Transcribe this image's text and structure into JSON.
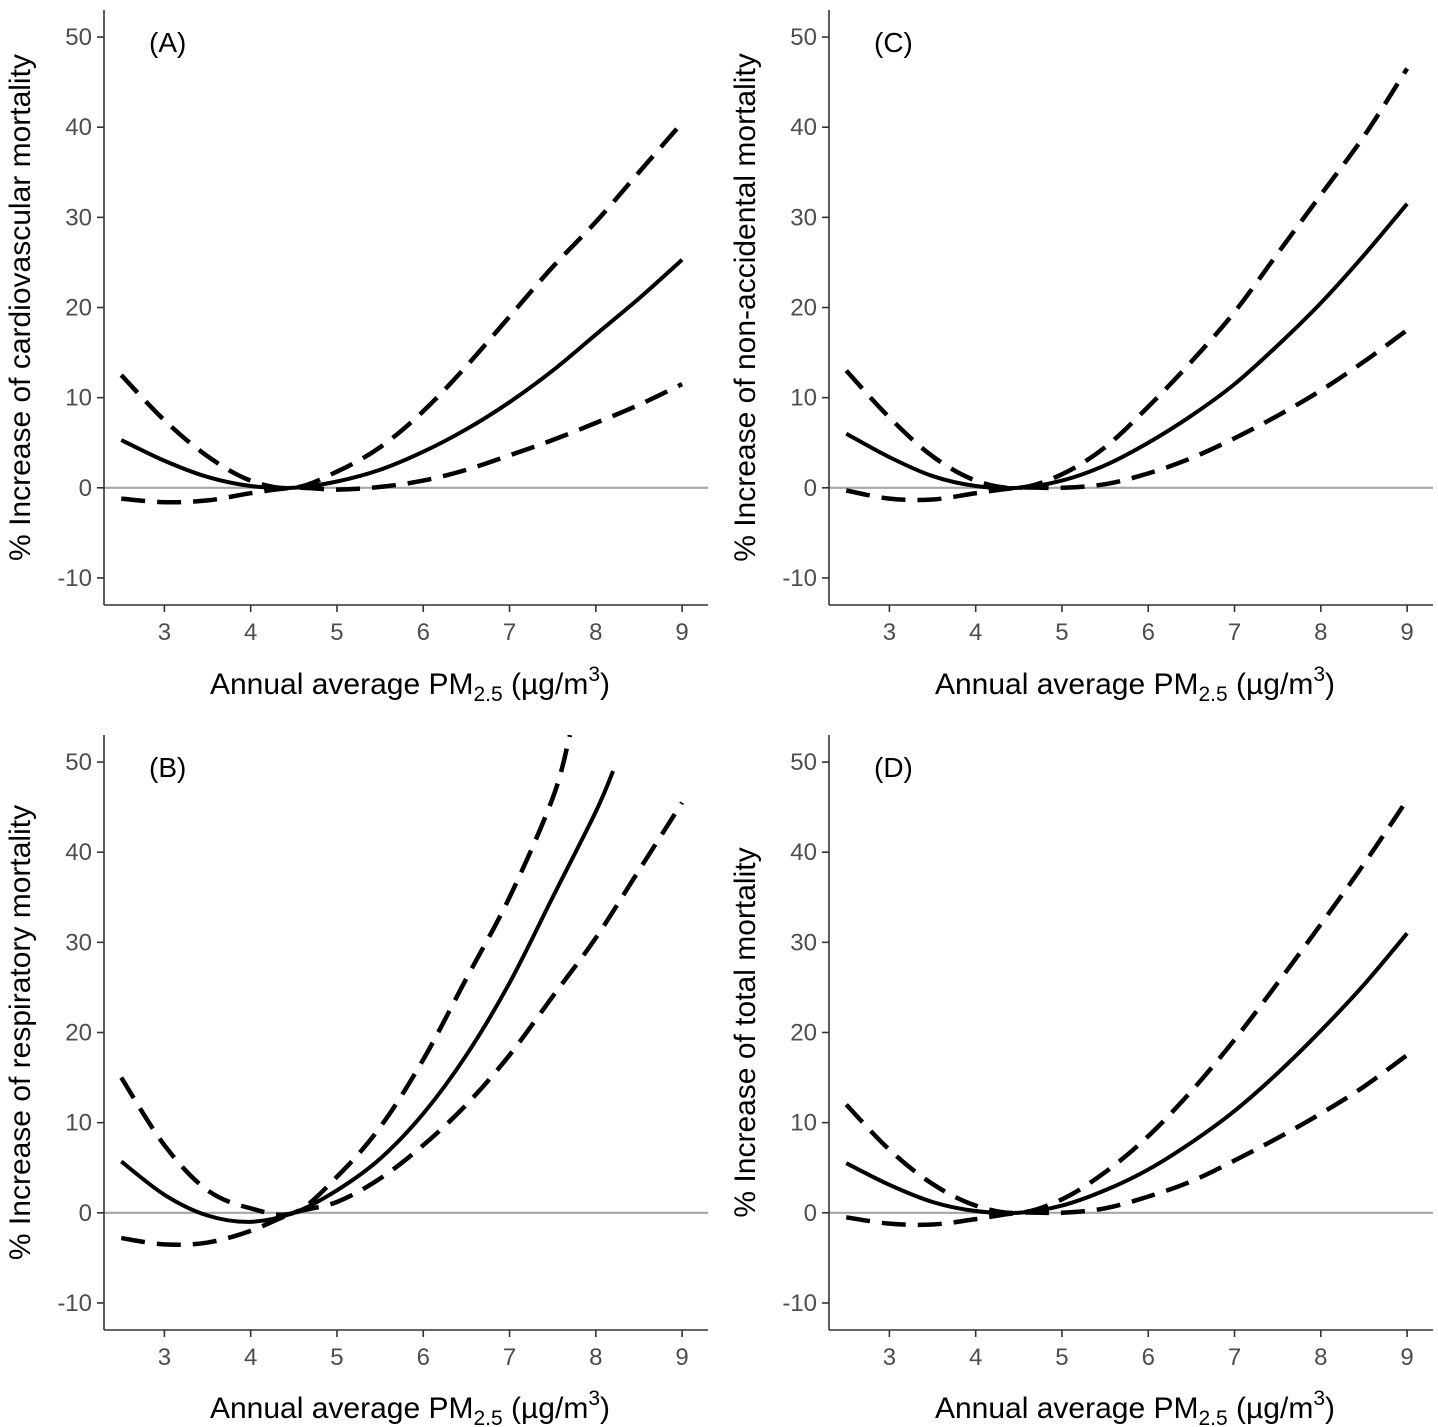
{
  "colors": {
    "line": "#000000",
    "reference": "#a6a6a6",
    "axis": "#333333",
    "tick_text": "#4d4d4d"
  },
  "chart_data": [
    {
      "type": "line",
      "panel": "(A)",
      "ylabel": "% Increase of cardiovascular mortality",
      "xlabel": {
        "prefix": "Annual average PM",
        "sub": "2.5",
        "unit": " (µg/m",
        "sup": "3",
        "close": ")"
      },
      "xlim": [
        2.3,
        9.3
      ],
      "ylim": [
        -13,
        53
      ],
      "xticks": [
        3,
        4,
        5,
        6,
        7,
        8,
        9
      ],
      "yticks": [
        -10,
        0,
        10,
        20,
        30,
        40,
        50
      ],
      "reference_y": 0,
      "x": [
        2.5,
        3.0,
        3.5,
        4.0,
        4.5,
        5.0,
        5.5,
        6.0,
        6.5,
        7.0,
        7.5,
        8.0,
        8.5,
        9.0
      ],
      "series": [
        {
          "style": "solid",
          "values": [
            5.3,
            3.0,
            1.2,
            0.2,
            0.0,
            0.7,
            2.0,
            4.0,
            6.5,
            9.5,
            13.0,
            17.0,
            21.0,
            25.3
          ]
        },
        {
          "style": "dashed",
          "values": [
            12.5,
            7.5,
            3.5,
            0.8,
            0.0,
            1.8,
            4.5,
            8.5,
            13.5,
            19.0,
            24.5,
            29.5,
            35.0,
            40.5
          ]
        },
        {
          "style": "dashed",
          "values": [
            -1.2,
            -1.6,
            -1.4,
            -0.6,
            0.0,
            -0.2,
            0.1,
            0.8,
            2.0,
            3.6,
            5.3,
            7.2,
            9.2,
            11.5
          ]
        }
      ]
    },
    {
      "type": "line",
      "panel": "(C)",
      "ylabel": "% Increase of non-accidental mortality",
      "xlabel": {
        "prefix": "Annual average PM",
        "sub": "2.5",
        "unit": " (µg/m",
        "sup": "3",
        "close": ")"
      },
      "xlim": [
        2.3,
        9.3
      ],
      "ylim": [
        -13,
        53
      ],
      "xticks": [
        3,
        4,
        5,
        6,
        7,
        8,
        9
      ],
      "yticks": [
        -10,
        0,
        10,
        20,
        30,
        40,
        50
      ],
      "reference_y": 0,
      "x": [
        2.5,
        3.0,
        3.5,
        4.0,
        4.5,
        5.0,
        5.5,
        6.0,
        6.5,
        7.0,
        7.5,
        8.0,
        8.5,
        9.0
      ],
      "series": [
        {
          "style": "solid",
          "values": [
            6.0,
            3.4,
            1.3,
            0.2,
            0.0,
            0.8,
            2.5,
            5.0,
            8.0,
            11.5,
            15.8,
            20.5,
            25.8,
            31.5
          ]
        },
        {
          "style": "dashed",
          "values": [
            13.0,
            7.8,
            3.5,
            0.8,
            0.0,
            1.5,
            4.5,
            9.0,
            14.0,
            19.5,
            26.0,
            32.5,
            39.0,
            46.5
          ]
        },
        {
          "style": "dashed",
          "values": [
            -0.3,
            -1.2,
            -1.3,
            -0.6,
            0.0,
            0.0,
            0.4,
            1.6,
            3.3,
            5.5,
            8.0,
            10.8,
            14.0,
            17.5
          ]
        }
      ]
    },
    {
      "type": "line",
      "panel": "(B)",
      "ylabel": "% Increase of respiratory mortality",
      "xlabel": {
        "prefix": "Annual average PM",
        "sub": "2.5",
        "unit": " (µg/m",
        "sup": "3",
        "close": ")"
      },
      "xlim": [
        2.3,
        9.3
      ],
      "ylim": [
        -13,
        53
      ],
      "xticks": [
        3,
        4,
        5,
        6,
        7,
        8,
        9
      ],
      "yticks": [
        -10,
        0,
        10,
        20,
        30,
        40,
        50
      ],
      "reference_y": 0,
      "x_solid": [
        2.5,
        3.0,
        3.5,
        4.0,
        4.5,
        5.0,
        5.5,
        6.0,
        6.5,
        7.0,
        7.5,
        8.0,
        8.2
      ],
      "x_upper": [
        2.5,
        3.0,
        3.5,
        4.0,
        4.5,
        5.0,
        5.5,
        6.0,
        6.5,
        7.0,
        7.5,
        7.7
      ],
      "x_lower": [
        2.5,
        3.0,
        3.5,
        4.0,
        4.5,
        5.0,
        5.5,
        6.0,
        6.5,
        7.0,
        7.5,
        8.0,
        8.5,
        9.0
      ],
      "series": [
        {
          "style": "solid",
          "values": [
            5.7,
            2.0,
            -0.3,
            -1.0,
            0.0,
            2.5,
            6.0,
            11.0,
            17.5,
            25.5,
            35.0,
            44.5,
            49.0
          ]
        },
        {
          "style": "dashed",
          "values": [
            15.0,
            7.5,
            2.5,
            0.5,
            0.0,
            4.0,
            9.5,
            17.0,
            26.0,
            35.0,
            46.0,
            53.0
          ]
        },
        {
          "style": "dashed",
          "values": [
            -2.8,
            -3.5,
            -3.3,
            -2.0,
            0.0,
            1.2,
            3.8,
            7.5,
            12.0,
            17.5,
            24.0,
            30.5,
            38.0,
            45.5
          ]
        }
      ]
    },
    {
      "type": "line",
      "panel": "(D)",
      "ylabel": "% Increase of total mortality",
      "xlabel": {
        "prefix": "Annual average PM",
        "sub": "2.5",
        "unit": " (µg/m",
        "sup": "3",
        "close": ")"
      },
      "xlim": [
        2.3,
        9.3
      ],
      "ylim": [
        -13,
        53
      ],
      "xticks": [
        3,
        4,
        5,
        6,
        7,
        8,
        9
      ],
      "yticks": [
        -10,
        0,
        10,
        20,
        30,
        40,
        50
      ],
      "reference_y": 0,
      "x": [
        2.5,
        3.0,
        3.5,
        4.0,
        4.5,
        5.0,
        5.5,
        6.0,
        6.5,
        7.0,
        7.5,
        8.0,
        8.5,
        9.0
      ],
      "series": [
        {
          "style": "solid",
          "values": [
            5.5,
            3.1,
            1.2,
            0.2,
            0.0,
            0.8,
            2.5,
            4.8,
            7.8,
            11.3,
            15.5,
            20.2,
            25.3,
            31.0
          ]
        },
        {
          "style": "dashed",
          "values": [
            12.0,
            7.0,
            3.2,
            0.8,
            0.0,
            1.5,
            4.5,
            8.5,
            13.5,
            19.2,
            25.5,
            32.0,
            38.7,
            45.8
          ]
        },
        {
          "style": "dashed",
          "values": [
            -0.5,
            -1.2,
            -1.3,
            -0.7,
            0.0,
            0.0,
            0.5,
            1.8,
            3.5,
            5.8,
            8.3,
            11.0,
            14.0,
            17.5
          ]
        }
      ]
    }
  ]
}
